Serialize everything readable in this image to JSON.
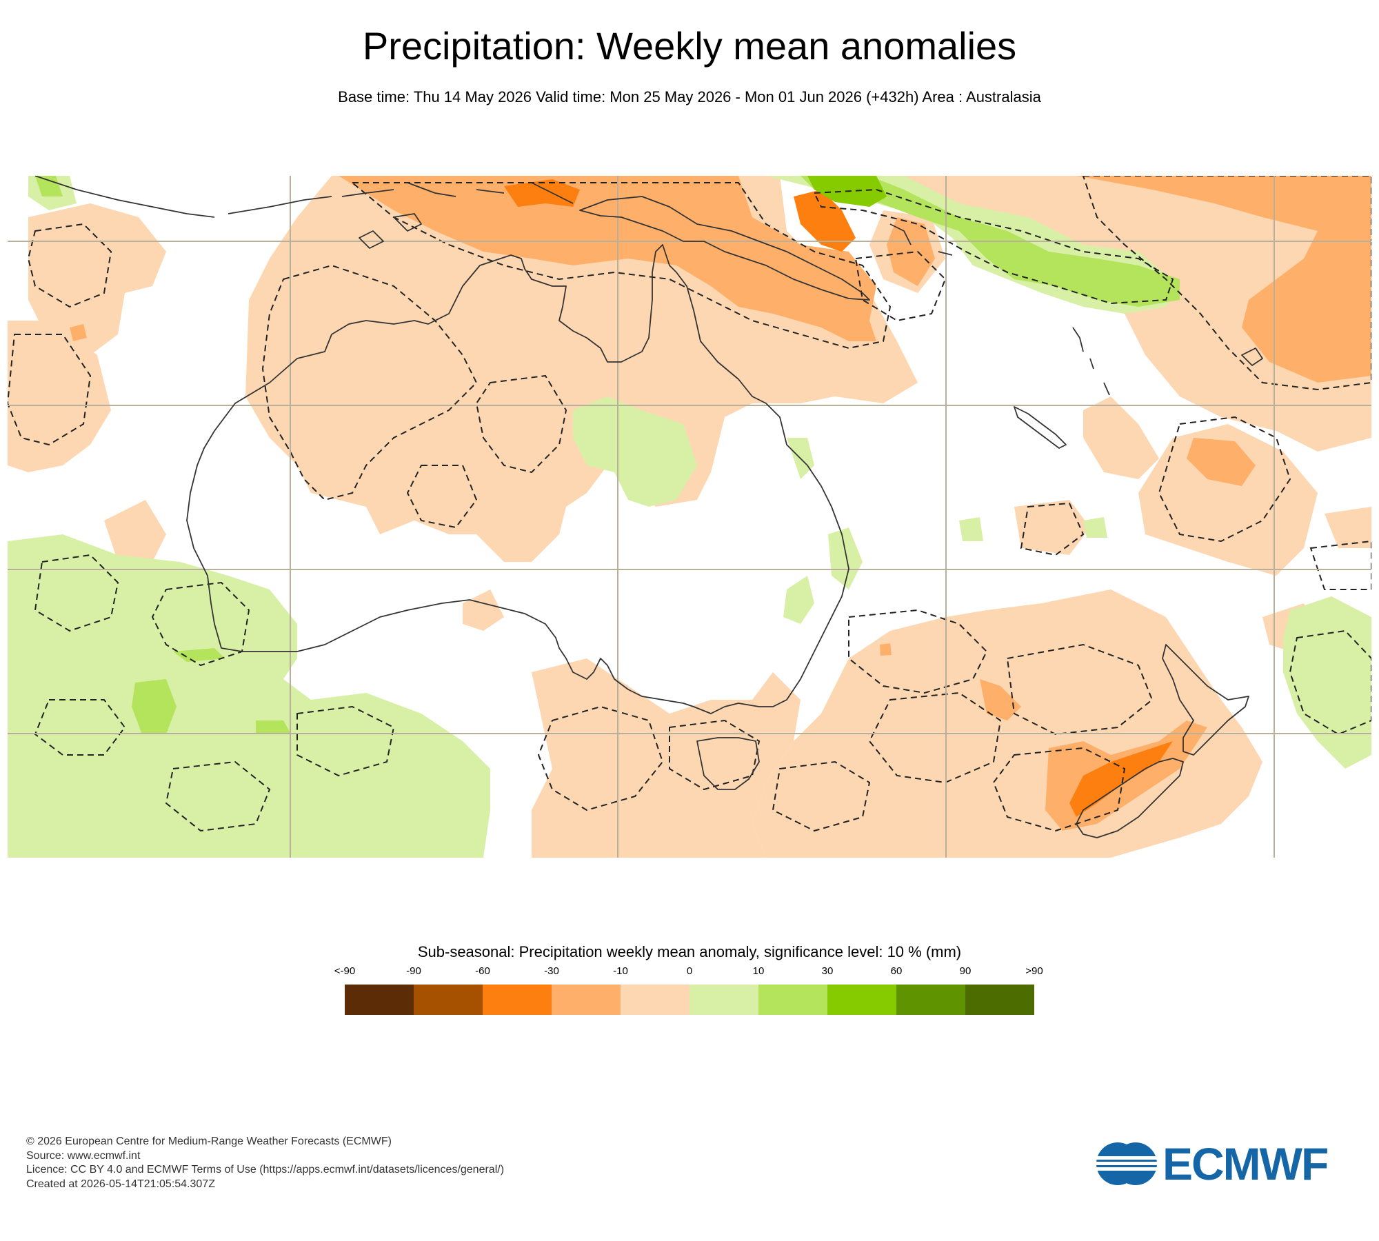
{
  "header": {
    "title": "Precipitation: Weekly mean anomalies",
    "subtitle": "Base time: Thu 14 May 2026 Valid time: Mon 25 May 2026 - Mon 01 Jun 2026 (+432h) Area : Australasia"
  },
  "map": {
    "area": "Australasia",
    "colors": {
      "ocean": "#ffffff",
      "coastline": "#333333",
      "gridline": "#b8b09a",
      "significance_contour": "#222222",
      "light_dry": "#fdd7b1",
      "moderate_dry": "#feb06a",
      "strong_dry": "#fd7f10",
      "light_wet": "#d8f0a5",
      "moderate_wet": "#b4e35c",
      "strong_wet": "#86cb00"
    }
  },
  "legend": {
    "title": "Sub-seasonal: Precipitation weekly mean anomaly, significance level: 10 % (mm)",
    "ticks": [
      "<-90",
      "-90",
      "-60",
      "-30",
      "-10",
      "0",
      "10",
      "30",
      "60",
      "90",
      ">90"
    ],
    "colors": [
      "#5b2c06",
      "#a65100",
      "#fd7f10",
      "#feb06a",
      "#fdd7b1",
      "#d8f0a5",
      "#b4e35c",
      "#86cb00",
      "#5f9400",
      "#4c6c00"
    ]
  },
  "footer": {
    "copyright": "© 2026 European Centre for Medium-Range Weather Forecasts (ECMWF)",
    "source": "Source: www.ecmwf.int",
    "licence": "Licence: CC BY 4.0 and ECMWF Terms of Use (https://apps.ecmwf.int/datasets/licences/general/)",
    "created": "Created at 2026-05-14T21:05:54.307Z"
  },
  "logo": {
    "text": "ECMWF",
    "color": "#1566a6"
  }
}
